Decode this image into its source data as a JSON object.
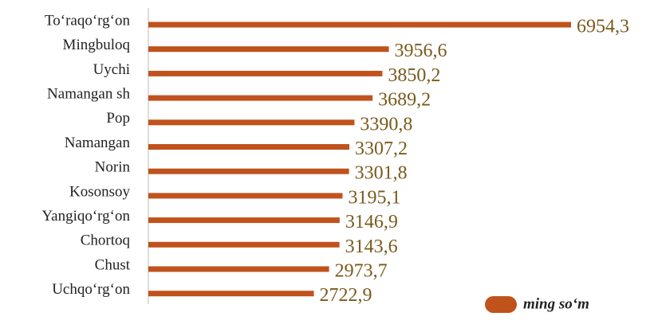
{
  "chart_data": {
    "type": "bar",
    "orientation": "horizontal",
    "categories": [
      "To‘raqo‘rg‘on",
      "Mingbuloq",
      "Uychi",
      "Namangan sh",
      "Pop",
      "Namangan",
      "Norin",
      "Kosonsoy",
      "Yangiqo‘rg‘on",
      "Chortoq",
      "Chust",
      "Uchqo‘rg‘on"
    ],
    "series": [
      {
        "name": "ming so‘m",
        "color": "#c0521c",
        "values": [
          6954.3,
          3956.6,
          3850.2,
          3689.2,
          3390.8,
          3307.2,
          3301.8,
          3195.1,
          3146.9,
          3143.6,
          2973.7,
          2722.9
        ]
      }
    ],
    "value_labels": [
      "6954,3",
      "3956,6",
      "3850,2",
      "3689,2",
      "3390,8",
      "3307,2",
      "3301,8",
      "3195,1",
      "3146,9",
      "3143,6",
      "2973,7",
      "2722,9"
    ],
    "legend": "bottom-right"
  }
}
